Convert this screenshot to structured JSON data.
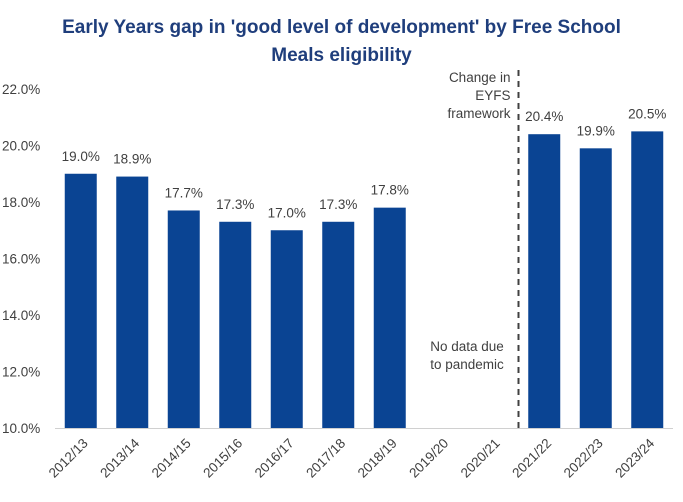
{
  "chart_data": {
    "type": "bar",
    "title": "Early Years gap in 'good level of development' by Free School Meals eligibility",
    "categories": [
      "2012/13",
      "2013/14",
      "2014/15",
      "2015/16",
      "2016/17",
      "2017/18",
      "2018/19",
      "2019/20",
      "2020/21",
      "2021/22",
      "2022/23",
      "2023/24"
    ],
    "values": [
      19.0,
      18.9,
      17.7,
      17.3,
      17.0,
      17.3,
      17.8,
      null,
      null,
      20.4,
      19.9,
      20.5
    ],
    "data_labels": [
      "19.0%",
      "18.9%",
      "17.7%",
      "17.3%",
      "17.0%",
      "17.3%",
      "17.8%",
      "",
      "",
      "20.4%",
      "19.9%",
      "20.5%"
    ],
    "ylim": [
      10,
      22
    ],
    "yticks": [
      10,
      12,
      14,
      16,
      18,
      20,
      22
    ],
    "ytick_labels": [
      "10.0%",
      "12.0%",
      "14.0%",
      "16.0%",
      "18.0%",
      "20.0%",
      "22.0%"
    ],
    "xlabel": "",
    "ylabel": "",
    "grid": false,
    "bar_color": "#0a4493",
    "title_color": "#1f3e7c",
    "annotations": [
      {
        "lines": [
          "Change in",
          "EYFS",
          "framework"
        ],
        "anchor": "before-2021/22"
      },
      {
        "lines": [
          "No data due",
          "to pandemic"
        ],
        "anchor": "2019/20-2020/21"
      }
    ],
    "divider_after_category": "2020/21"
  }
}
